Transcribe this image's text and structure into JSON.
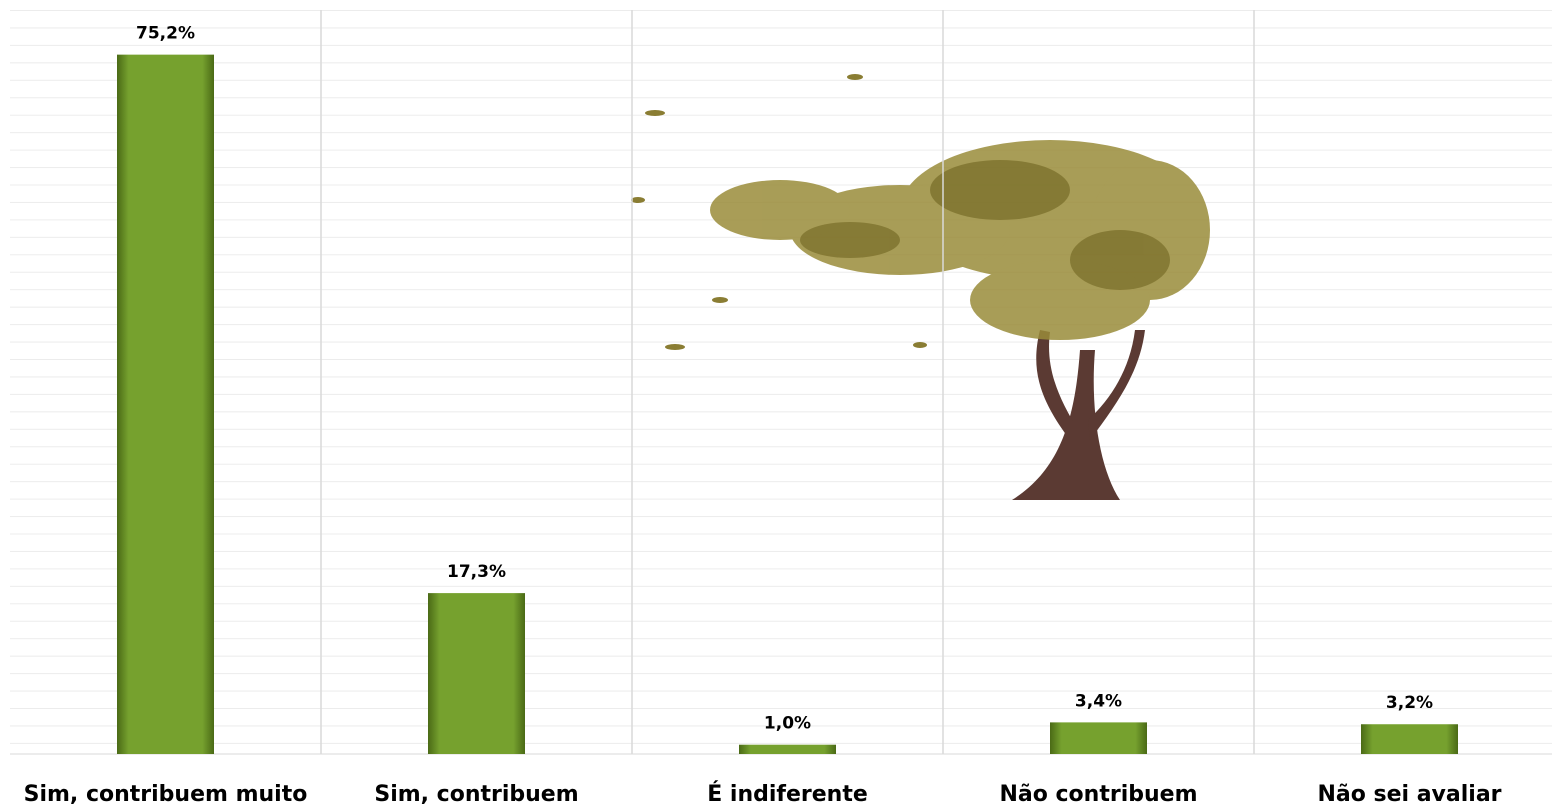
{
  "chart_data": {
    "type": "bar",
    "categories": [
      "Sim, contribuem muito",
      "Sim, contribuem",
      "É indiferente",
      "Não contribuem",
      "Não sei avaliar"
    ],
    "values": [
      75.2,
      17.3,
      1.0,
      3.4,
      3.2
    ],
    "value_labels": [
      "75,2%",
      "17,3%",
      "1,0%",
      "3,4%",
      "3,2%"
    ],
    "color": "#76a12e",
    "ylim": [
      0,
      80
    ]
  }
}
